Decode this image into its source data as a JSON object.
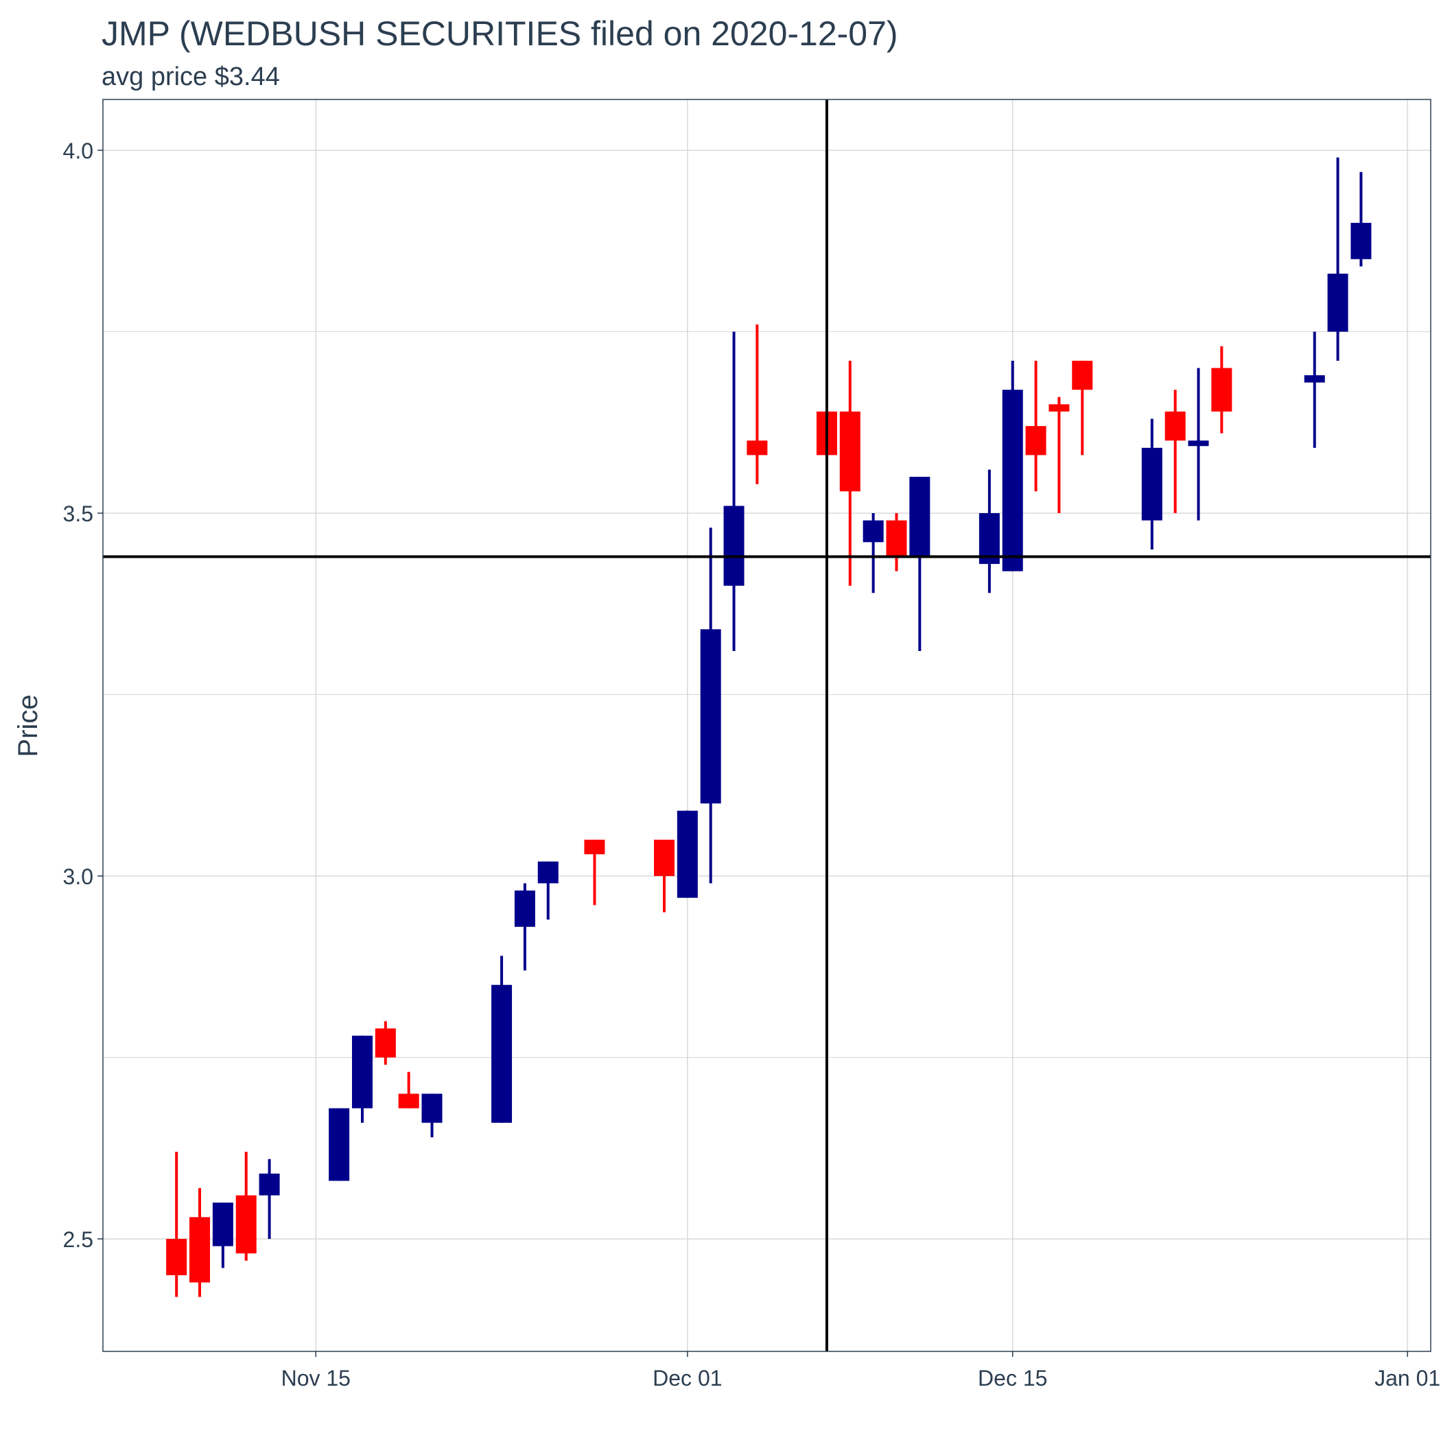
{
  "chart_data": {
    "type": "candlestick",
    "title": "JMP (WEDBUSH SECURITIES filed on 2020-12-07)",
    "subtitle": "avg price $3.44",
    "ylabel": "Price",
    "xlabel": "",
    "x_ticks": [
      {
        "date": "2020-11-15",
        "label": "Nov 15"
      },
      {
        "date": "2020-12-01",
        "label": "Dec 01"
      },
      {
        "date": "2020-12-15",
        "label": "Dec 15"
      },
      {
        "date": "2021-01-01",
        "label": "Jan 01"
      }
    ],
    "y_ticks": [
      2.5,
      3.0,
      3.5,
      4.0
    ],
    "xlim": [
      "2020-11-05T20:00",
      "2021-01-02"
    ],
    "ylim": [
      2.345,
      4.07
    ],
    "grid": true,
    "colors": {
      "up": "#00008B",
      "down": "#FF0000",
      "reference": "#000000",
      "title": "#2C3E50"
    },
    "reference_lines": {
      "vertical_date": "2020-12-07",
      "horizontal_price": 3.44
    },
    "candles": [
      {
        "date": "2020-11-09",
        "open": 2.5,
        "high": 2.62,
        "low": 2.42,
        "close": 2.45
      },
      {
        "date": "2020-11-10",
        "open": 2.53,
        "high": 2.57,
        "low": 2.42,
        "close": 2.44
      },
      {
        "date": "2020-11-11",
        "open": 2.49,
        "high": 2.55,
        "low": 2.46,
        "close": 2.55
      },
      {
        "date": "2020-11-12",
        "open": 2.56,
        "high": 2.62,
        "low": 2.47,
        "close": 2.48
      },
      {
        "date": "2020-11-13",
        "open": 2.56,
        "high": 2.61,
        "low": 2.5,
        "close": 2.59
      },
      {
        "date": "2020-11-16",
        "open": 2.58,
        "high": 2.68,
        "low": 2.58,
        "close": 2.68
      },
      {
        "date": "2020-11-17",
        "open": 2.68,
        "high": 2.78,
        "low": 2.66,
        "close": 2.78
      },
      {
        "date": "2020-11-18",
        "open": 2.79,
        "high": 2.8,
        "low": 2.74,
        "close": 2.75
      },
      {
        "date": "2020-11-19",
        "open": 2.7,
        "high": 2.73,
        "low": 2.68,
        "close": 2.68
      },
      {
        "date": "2020-11-20",
        "open": 2.66,
        "high": 2.7,
        "low": 2.64,
        "close": 2.7
      },
      {
        "date": "2020-11-23",
        "open": 2.66,
        "high": 2.89,
        "low": 2.66,
        "close": 2.85
      },
      {
        "date": "2020-11-24",
        "open": 2.93,
        "high": 2.99,
        "low": 2.87,
        "close": 2.98
      },
      {
        "date": "2020-11-25",
        "open": 2.99,
        "high": 3.02,
        "low": 2.94,
        "close": 3.02
      },
      {
        "date": "2020-11-27",
        "open": 3.05,
        "high": 3.05,
        "low": 2.96,
        "close": 3.03
      },
      {
        "date": "2020-11-30",
        "open": 3.05,
        "high": 3.05,
        "low": 2.95,
        "close": 3.0
      },
      {
        "date": "2020-12-01",
        "open": 2.97,
        "high": 3.09,
        "low": 2.97,
        "close": 3.09
      },
      {
        "date": "2020-12-02",
        "open": 3.1,
        "high": 3.48,
        "low": 2.99,
        "close": 3.34
      },
      {
        "date": "2020-12-03",
        "open": 3.4,
        "high": 3.75,
        "low": 3.31,
        "close": 3.51
      },
      {
        "date": "2020-12-04",
        "open": 3.6,
        "high": 3.76,
        "low": 3.54,
        "close": 3.58
      },
      {
        "date": "2020-12-07",
        "open": 3.64,
        "high": 3.64,
        "low": 3.58,
        "close": 3.58
      },
      {
        "date": "2020-12-08",
        "open": 3.64,
        "high": 3.71,
        "low": 3.4,
        "close": 3.53
      },
      {
        "date": "2020-12-09",
        "open": 3.46,
        "high": 3.5,
        "low": 3.39,
        "close": 3.49
      },
      {
        "date": "2020-12-10",
        "open": 3.49,
        "high": 3.5,
        "low": 3.42,
        "close": 3.44
      },
      {
        "date": "2020-12-11",
        "open": 3.44,
        "high": 3.55,
        "low": 3.31,
        "close": 3.55
      },
      {
        "date": "2020-12-14",
        "open": 3.43,
        "high": 3.56,
        "low": 3.39,
        "close": 3.5
      },
      {
        "date": "2020-12-15",
        "open": 3.42,
        "high": 3.71,
        "low": 3.42,
        "close": 3.67
      },
      {
        "date": "2020-12-16",
        "open": 3.62,
        "high": 3.71,
        "low": 3.53,
        "close": 3.58
      },
      {
        "date": "2020-12-17",
        "open": 3.65,
        "high": 3.66,
        "low": 3.5,
        "close": 3.64
      },
      {
        "date": "2020-12-18",
        "open": 3.71,
        "high": 3.71,
        "low": 3.58,
        "close": 3.67
      },
      {
        "date": "2020-12-21",
        "open": 3.49,
        "high": 3.63,
        "low": 3.45,
        "close": 3.59
      },
      {
        "date": "2020-12-22",
        "open": 3.64,
        "high": 3.67,
        "low": 3.5,
        "close": 3.6
      },
      {
        "date": "2020-12-23",
        "open": 3.6,
        "high": 3.7,
        "low": 3.49,
        "close": 3.6
      },
      {
        "date": "2020-12-24",
        "open": 3.7,
        "high": 3.73,
        "low": 3.61,
        "close": 3.64
      },
      {
        "date": "2020-12-28",
        "open": 3.68,
        "high": 3.75,
        "low": 3.59,
        "close": 3.69
      },
      {
        "date": "2020-12-29",
        "open": 3.75,
        "high": 3.99,
        "low": 3.71,
        "close": 3.83
      },
      {
        "date": "2020-12-30",
        "open": 3.85,
        "high": 3.97,
        "low": 3.84,
        "close": 3.9
      }
    ]
  }
}
